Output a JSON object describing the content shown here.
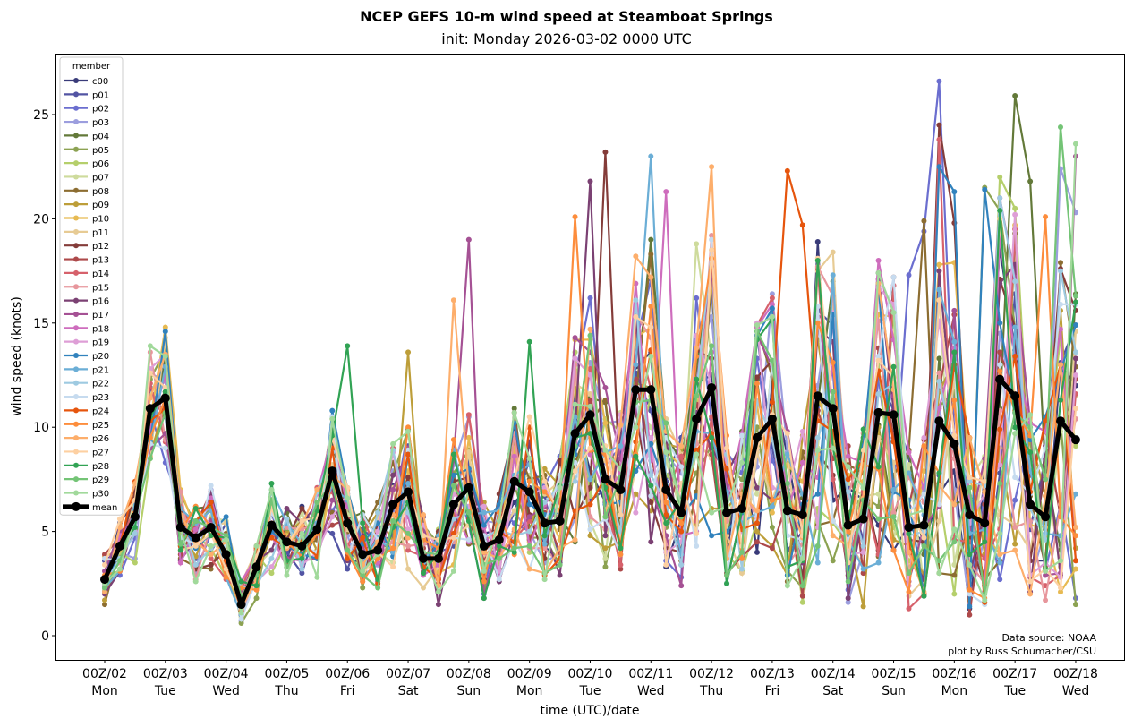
{
  "chart_data": {
    "type": "line",
    "title": "NCEP GEFS 10-m wind speed at Steamboat Springs",
    "subtitle": "init: Monday 2026-03-02 0000 UTC",
    "xlabel": "time (UTC)/date",
    "ylabel": "wind speed (knots)",
    "ylim": [
      -1.1,
      28
    ],
    "yticks": [
      0,
      5,
      10,
      15,
      20,
      25
    ],
    "x_step_hours": 6,
    "x_start": "00Z/02",
    "xticks": [
      {
        "label": "00Z/02",
        "day": "Mon"
      },
      {
        "label": "00Z/03",
        "day": "Tue"
      },
      {
        "label": "00Z/04",
        "day": "Wed"
      },
      {
        "label": "00Z/05",
        "day": "Thu"
      },
      {
        "label": "00Z/06",
        "day": "Fri"
      },
      {
        "label": "00Z/07",
        "day": "Sat"
      },
      {
        "label": "00Z/08",
        "day": "Sun"
      },
      {
        "label": "00Z/09",
        "day": "Mon"
      },
      {
        "label": "00Z/10",
        "day": "Tue"
      },
      {
        "label": "00Z/11",
        "day": "Wed"
      },
      {
        "label": "00Z/12",
        "day": "Thu"
      },
      {
        "label": "00Z/13",
        "day": "Fri"
      },
      {
        "label": "00Z/14",
        "day": "Sat"
      },
      {
        "label": "00Z/15",
        "day": "Sun"
      },
      {
        "label": "00Z/16",
        "day": "Mon"
      },
      {
        "label": "00Z/17",
        "day": "Tue"
      },
      {
        "label": "00Z/18",
        "day": "Wed"
      }
    ],
    "legend": {
      "title": "member",
      "placement": "upper-left"
    },
    "grid": false,
    "mean": {
      "name": "mean",
      "color": "#000000",
      "values": [
        2.7,
        4.3,
        5.7,
        10.9,
        11.4,
        5.2,
        4.7,
        5.2,
        3.9,
        1.5,
        3.3,
        5.3,
        4.5,
        4.3,
        5.1,
        7.9,
        5.4,
        3.9,
        4.1,
        6.3,
        6.9,
        3.7,
        3.7,
        6.3,
        7.1,
        4.3,
        4.6,
        7.4,
        6.9,
        5.4,
        5.5,
        9.7,
        10.6,
        7.5,
        7.0,
        11.8,
        11.8,
        7.0,
        5.9,
        10.4,
        11.9,
        5.9,
        6.1,
        9.5,
        10.4,
        6.0,
        5.8,
        11.5,
        10.9,
        5.3,
        5.6,
        10.7,
        10.6,
        5.2,
        5.3,
        10.3,
        9.2,
        5.8,
        5.4,
        12.3,
        11.5,
        6.3,
        5.7,
        10.3,
        9.4
      ]
    },
    "members": [
      {
        "name": "c00",
        "color": "#393b79"
      },
      {
        "name": "p01",
        "color": "#5254a3"
      },
      {
        "name": "p02",
        "color": "#6b6ecf",
        "peaks": {
          "53": 17.3,
          "54": 19.4,
          "55": 26.6
        }
      },
      {
        "name": "p03",
        "color": "#9c9ede",
        "peaks": {
          "63": 22.4,
          "64": 20.3
        }
      },
      {
        "name": "p04",
        "color": "#637939",
        "peaks": {
          "60": 25.9,
          "61": 21.8
        }
      },
      {
        "name": "p05",
        "color": "#8ca252",
        "peaks": {
          "58": 21.5,
          "59": 20.4
        }
      },
      {
        "name": "p06",
        "color": "#b5cf6b"
      },
      {
        "name": "p07",
        "color": "#cedb9c",
        "peaks": {
          "39": 18.8
        }
      },
      {
        "name": "p08",
        "color": "#8c6d31",
        "peaks": {
          "54": 19.9
        }
      },
      {
        "name": "p09",
        "color": "#bd9e39",
        "peaks": {
          "20": 13.6
        }
      },
      {
        "name": "p10",
        "color": "#e7ba52",
        "peaks": {
          "56": 17.9
        }
      },
      {
        "name": "p11",
        "color": "#e7cb94"
      },
      {
        "name": "p12",
        "color": "#843c39",
        "peaks": {
          "33": 23.2,
          "55": 24.5,
          "56": 19.8
        }
      },
      {
        "name": "p13",
        "color": "#ad494a"
      },
      {
        "name": "p14",
        "color": "#d6616b",
        "peaks": {
          "55": 23.8
        }
      },
      {
        "name": "p15",
        "color": "#e7969c"
      },
      {
        "name": "p16",
        "color": "#7b4173",
        "peaks": {
          "32": 21.8
        }
      },
      {
        "name": "p17",
        "color": "#a55194",
        "peaks": {
          "24": 19.0,
          "59": 21.0,
          "64": 23.0
        }
      },
      {
        "name": "p18",
        "color": "#ce6dbd",
        "peaks": {
          "37": 21.3
        }
      },
      {
        "name": "p19",
        "color": "#de9ed6"
      },
      {
        "name": "p20",
        "color": "#3182bd",
        "peaks": {
          "55": 22.5,
          "56": 21.3,
          "58": 21.4
        }
      },
      {
        "name": "p21",
        "color": "#6baed6",
        "peaks": {
          "36": 23.0
        }
      },
      {
        "name": "p22",
        "color": "#9ecae1"
      },
      {
        "name": "p23",
        "color": "#c6dbef",
        "peaks": {
          "40": 19.0
        }
      },
      {
        "name": "p24",
        "color": "#e6550d",
        "peaks": {
          "45": 22.3,
          "46": 19.7
        }
      },
      {
        "name": "p25",
        "color": "#fd8d3c",
        "peaks": {
          "31": 20.1,
          "62": 20.1
        }
      },
      {
        "name": "p26",
        "color": "#fdae6b",
        "peaks": {
          "23": 16.1,
          "40": 22.5
        }
      },
      {
        "name": "p27",
        "color": "#fdd0a2"
      },
      {
        "name": "p28",
        "color": "#31a354",
        "peaks": {
          "16": 13.9,
          "28": 14.1
        }
      },
      {
        "name": "p29",
        "color": "#74c476",
        "peaks": {
          "63": 24.4
        }
      },
      {
        "name": "p30",
        "color": "#a1d99b",
        "peaks": {
          "64": 23.6
        }
      }
    ],
    "annotations": [
      "Data source: NOAA",
      "plot by Russ Schumacher/CSU"
    ]
  }
}
